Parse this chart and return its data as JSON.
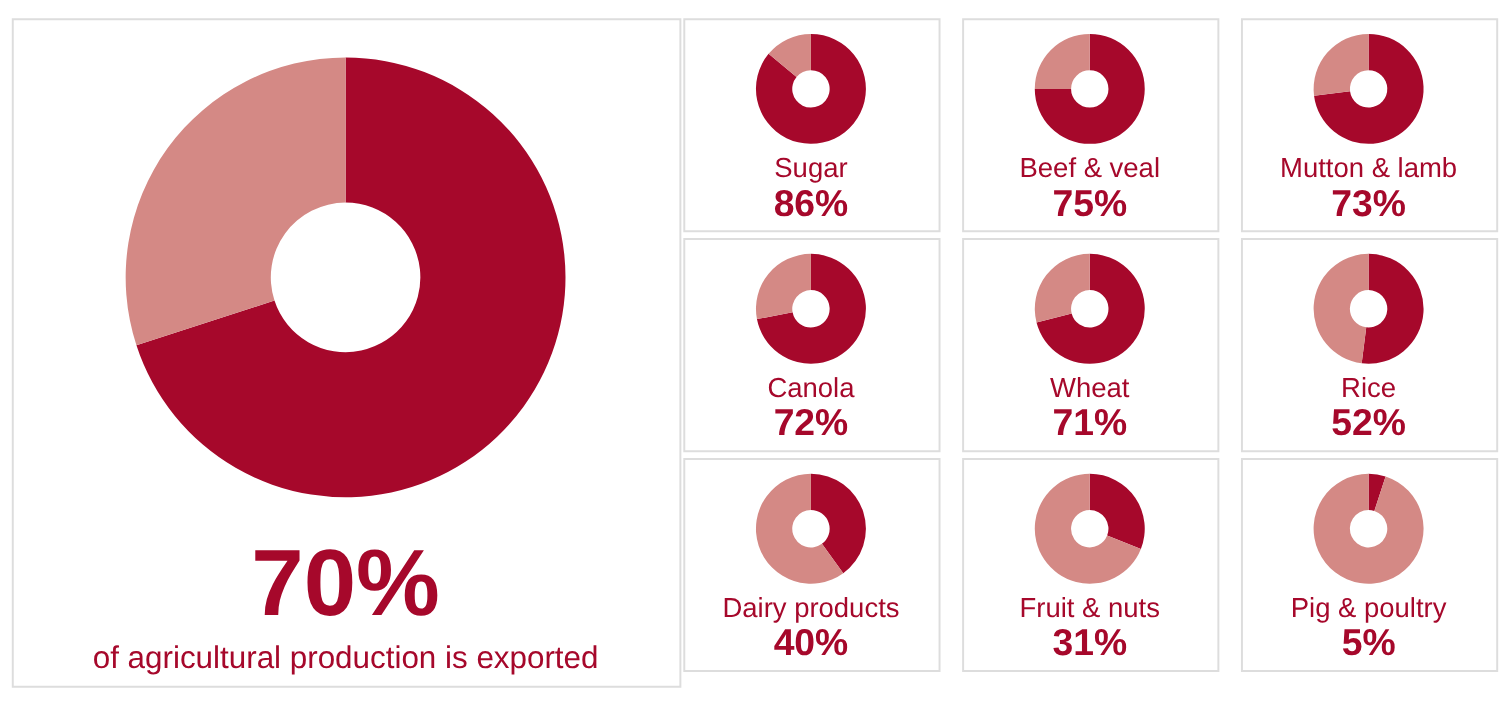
{
  "chart_data": [
    {
      "type": "donut",
      "categories": [
        null,
        null
      ],
      "values": [
        70,
        30
      ],
      "colors": [
        "#a6082b",
        "#d48985"
      ],
      "annotations": [
        "70%",
        "of agricultural production is exported"
      ]
    },
    {
      "type": "donut",
      "title": "Sugar",
      "categories": [
        null,
        null
      ],
      "values": [
        86,
        14
      ],
      "colors": [
        "#a6082b",
        "#d48985"
      ],
      "annotations": [
        "86%"
      ]
    },
    {
      "type": "donut",
      "title": "Beef & veal",
      "categories": [
        null,
        null
      ],
      "values": [
        75,
        25
      ],
      "colors": [
        "#a6082b",
        "#d48985"
      ],
      "annotations": [
        "75%"
      ]
    },
    {
      "type": "donut",
      "title": "Mutton & lamb",
      "categories": [
        null,
        null
      ],
      "values": [
        73,
        27
      ],
      "colors": [
        "#a6082b",
        "#d48985"
      ],
      "annotations": [
        "73%"
      ]
    },
    {
      "type": "donut",
      "title": "Canola",
      "categories": [
        null,
        null
      ],
      "values": [
        72,
        28
      ],
      "colors": [
        "#a6082b",
        "#d48985"
      ],
      "annotations": [
        "72%"
      ]
    },
    {
      "type": "donut",
      "title": "Wheat",
      "categories": [
        null,
        null
      ],
      "values": [
        71,
        29
      ],
      "colors": [
        "#a6082b",
        "#d48985"
      ],
      "annotations": [
        "71%"
      ]
    },
    {
      "type": "donut",
      "title": "Rice",
      "categories": [
        null,
        null
      ],
      "values": [
        52,
        48
      ],
      "colors": [
        "#a6082b",
        "#d48985"
      ],
      "annotations": [
        "52%"
      ]
    },
    {
      "type": "donut",
      "title": "Dairy products",
      "categories": [
        null,
        null
      ],
      "values": [
        40,
        60
      ],
      "colors": [
        "#a6082b",
        "#d48985"
      ],
      "annotations": [
        "40%"
      ]
    },
    {
      "type": "donut",
      "title": "Fruit & nuts",
      "categories": [
        null,
        null
      ],
      "values": [
        31,
        69
      ],
      "colors": [
        "#a6082b",
        "#d48985"
      ],
      "annotations": [
        "31%"
      ]
    },
    {
      "type": "donut",
      "title": "Pig & poultry",
      "categories": [
        null,
        null
      ],
      "values": [
        5,
        95
      ],
      "colors": [
        "#a6082b",
        "#d48985"
      ],
      "annotations": [
        "5%"
      ]
    }
  ]
}
